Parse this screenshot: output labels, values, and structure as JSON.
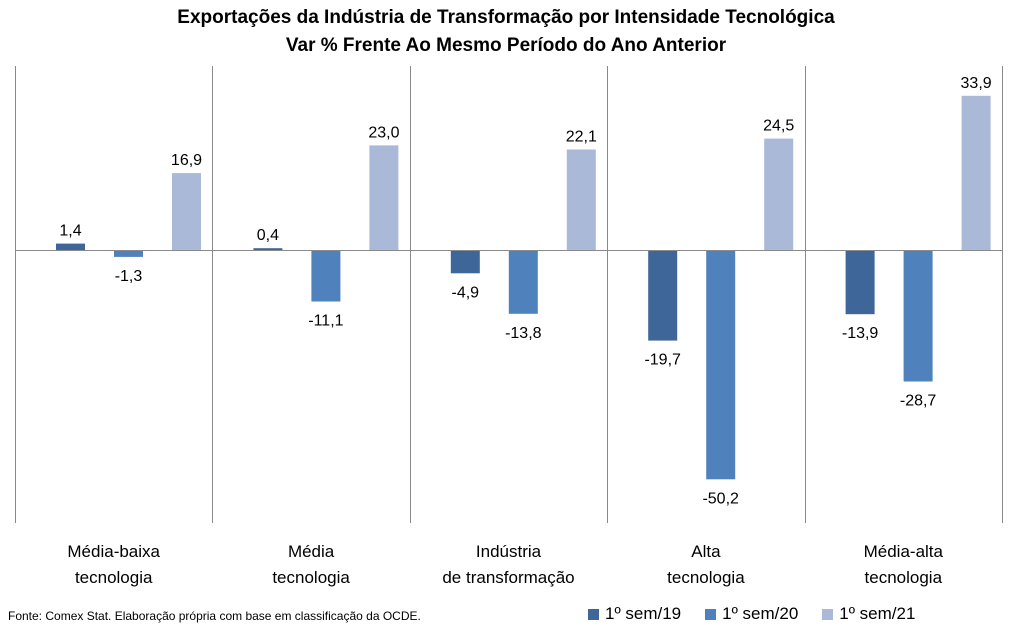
{
  "chart_data": {
    "type": "bar",
    "title": "Exportações da Indústria de Transformação por Intensidade Tecnológica",
    "subtitle": "Var % Frente Ao Mesmo Período do Ano Anterior",
    "categories": [
      [
        "Média-baixa",
        "tecnologia"
      ],
      [
        "Média",
        "tecnologia"
      ],
      [
        "Indústria",
        "de transformação"
      ],
      [
        "Alta",
        "tecnologia"
      ],
      [
        "Média-alta",
        "tecnologia"
      ]
    ],
    "series": [
      {
        "name": "1º sem/19",
        "color": "#3f6698",
        "values": [
          1.4,
          0.4,
          -4.9,
          -19.7,
          -13.9
        ],
        "labels": [
          "1,4",
          "0,4",
          "-4,9",
          "-19,7",
          "-13,9"
        ]
      },
      {
        "name": "1º sem/20",
        "color": "#4f81bd",
        "values": [
          -1.3,
          -11.1,
          -13.8,
          -50.2,
          -28.7
        ],
        "labels": [
          "-1,3",
          "-11,1",
          "-13,8",
          "-50,2",
          "-28,7"
        ]
      },
      {
        "name": "1º sem/21",
        "color": "#aab9d8",
        "values": [
          16.9,
          23.0,
          22.1,
          24.5,
          33.9
        ],
        "labels": [
          "16,9",
          "23,0",
          "22,1",
          "24,5",
          "33,9"
        ]
      }
    ],
    "ylim": [
      -50.2,
      33.9
    ],
    "legend_position": "bottom-right",
    "grid": false
  },
  "source": "Fonte: Comex Stat. Elaboração própria com base em classificação da OCDE."
}
